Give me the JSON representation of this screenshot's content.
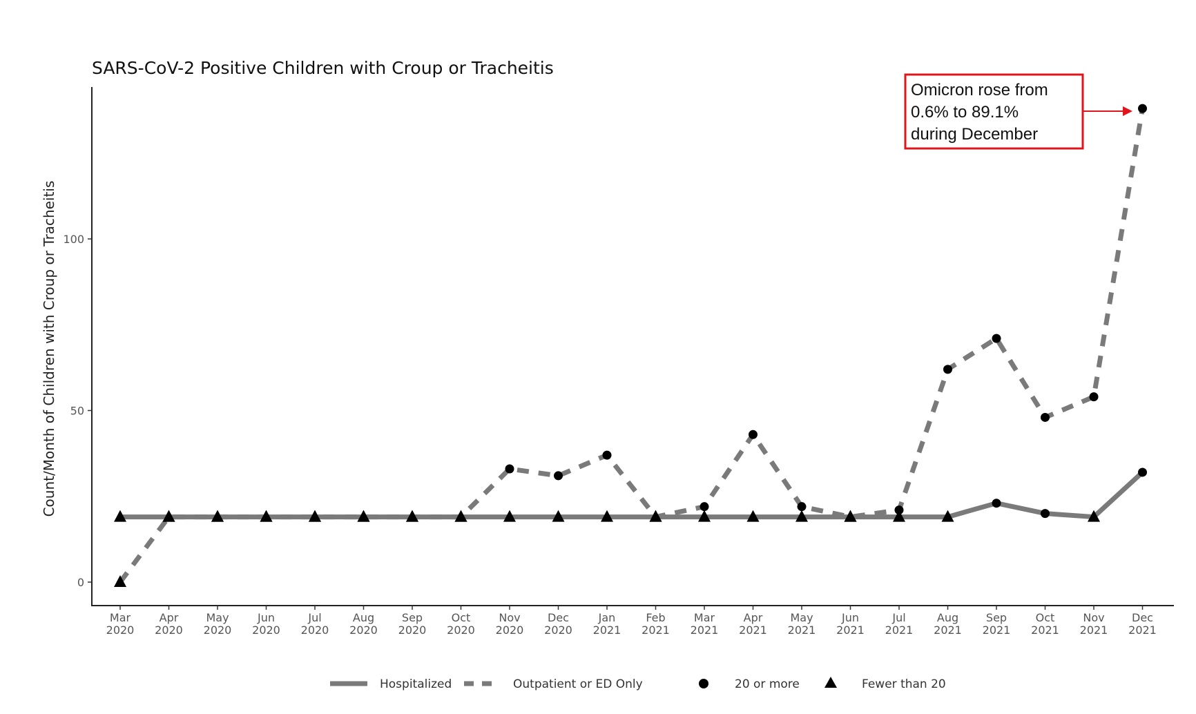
{
  "chart_data": {
    "type": "line",
    "title": "SARS-CoV-2 Positive Children with Croup or Tracheitis",
    "xlabel": "",
    "ylabel": "Count/Month of Children with Croup or Tracheitis",
    "ylim": [
      -6,
      145
    ],
    "yticks": [
      "0",
      "50",
      "100"
    ],
    "grid": false,
    "legend_position": "bottom",
    "categories": [
      [
        "Mar",
        "2020"
      ],
      [
        "Apr",
        "2020"
      ],
      [
        "May",
        "2020"
      ],
      [
        "Jun",
        "2020"
      ],
      [
        "Jul",
        "2020"
      ],
      [
        "Aug",
        "2020"
      ],
      [
        "Sep",
        "2020"
      ],
      [
        "Oct",
        "2020"
      ],
      [
        "Nov",
        "2020"
      ],
      [
        "Dec",
        "2020"
      ],
      [
        "Jan",
        "2021"
      ],
      [
        "Feb",
        "2021"
      ],
      [
        "Mar",
        "2021"
      ],
      [
        "Apr",
        "2021"
      ],
      [
        "May",
        "2021"
      ],
      [
        "Jun",
        "2021"
      ],
      [
        "Jul",
        "2021"
      ],
      [
        "Aug",
        "2021"
      ],
      [
        "Sep",
        "2021"
      ],
      [
        "Oct",
        "2021"
      ],
      [
        "Nov",
        "2021"
      ],
      [
        "Dec",
        "2021"
      ]
    ],
    "series": [
      {
        "name": "Hospitalized",
        "line_style": "solid",
        "color": "#7a7a7a",
        "values": [
          19,
          19,
          19,
          19,
          19,
          19,
          19,
          19,
          19,
          19,
          19,
          19,
          19,
          19,
          19,
          19,
          19,
          19,
          23,
          20,
          19,
          32
        ],
        "markers": [
          "triangle",
          "triangle",
          "triangle",
          "triangle",
          "triangle",
          "triangle",
          "triangle",
          "triangle",
          "triangle",
          "triangle",
          "triangle",
          "triangle",
          "triangle",
          "triangle",
          "triangle",
          "triangle",
          "triangle",
          "triangle",
          "circle",
          "circle",
          "triangle",
          "circle"
        ]
      },
      {
        "name": "Outpatient or ED Only",
        "line_style": "dashed",
        "color": "#7a7a7a",
        "values": [
          0,
          19,
          19,
          19,
          19,
          19,
          19,
          19,
          33,
          31,
          37,
          19,
          22,
          43,
          22,
          19,
          21,
          62,
          71,
          48,
          54,
          138
        ],
        "markers": [
          "triangle",
          "triangle",
          "triangle",
          "triangle",
          "triangle",
          "triangle",
          "triangle",
          "triangle",
          "circle",
          "circle",
          "circle",
          "triangle",
          "circle",
          "circle",
          "circle",
          "triangle",
          "circle",
          "circle",
          "circle",
          "circle",
          "circle",
          "circle"
        ]
      }
    ],
    "marker_legend": [
      {
        "shape": "circle",
        "label": "20 or more"
      },
      {
        "shape": "triangle",
        "label": "Fewer than 20"
      }
    ],
    "annotation": {
      "lines": [
        "Omicron rose from",
        "0.6% to 89.1%",
        "during December"
      ],
      "color": "#e0141b",
      "points_to": [
        "Dec",
        "2021"
      ]
    }
  }
}
